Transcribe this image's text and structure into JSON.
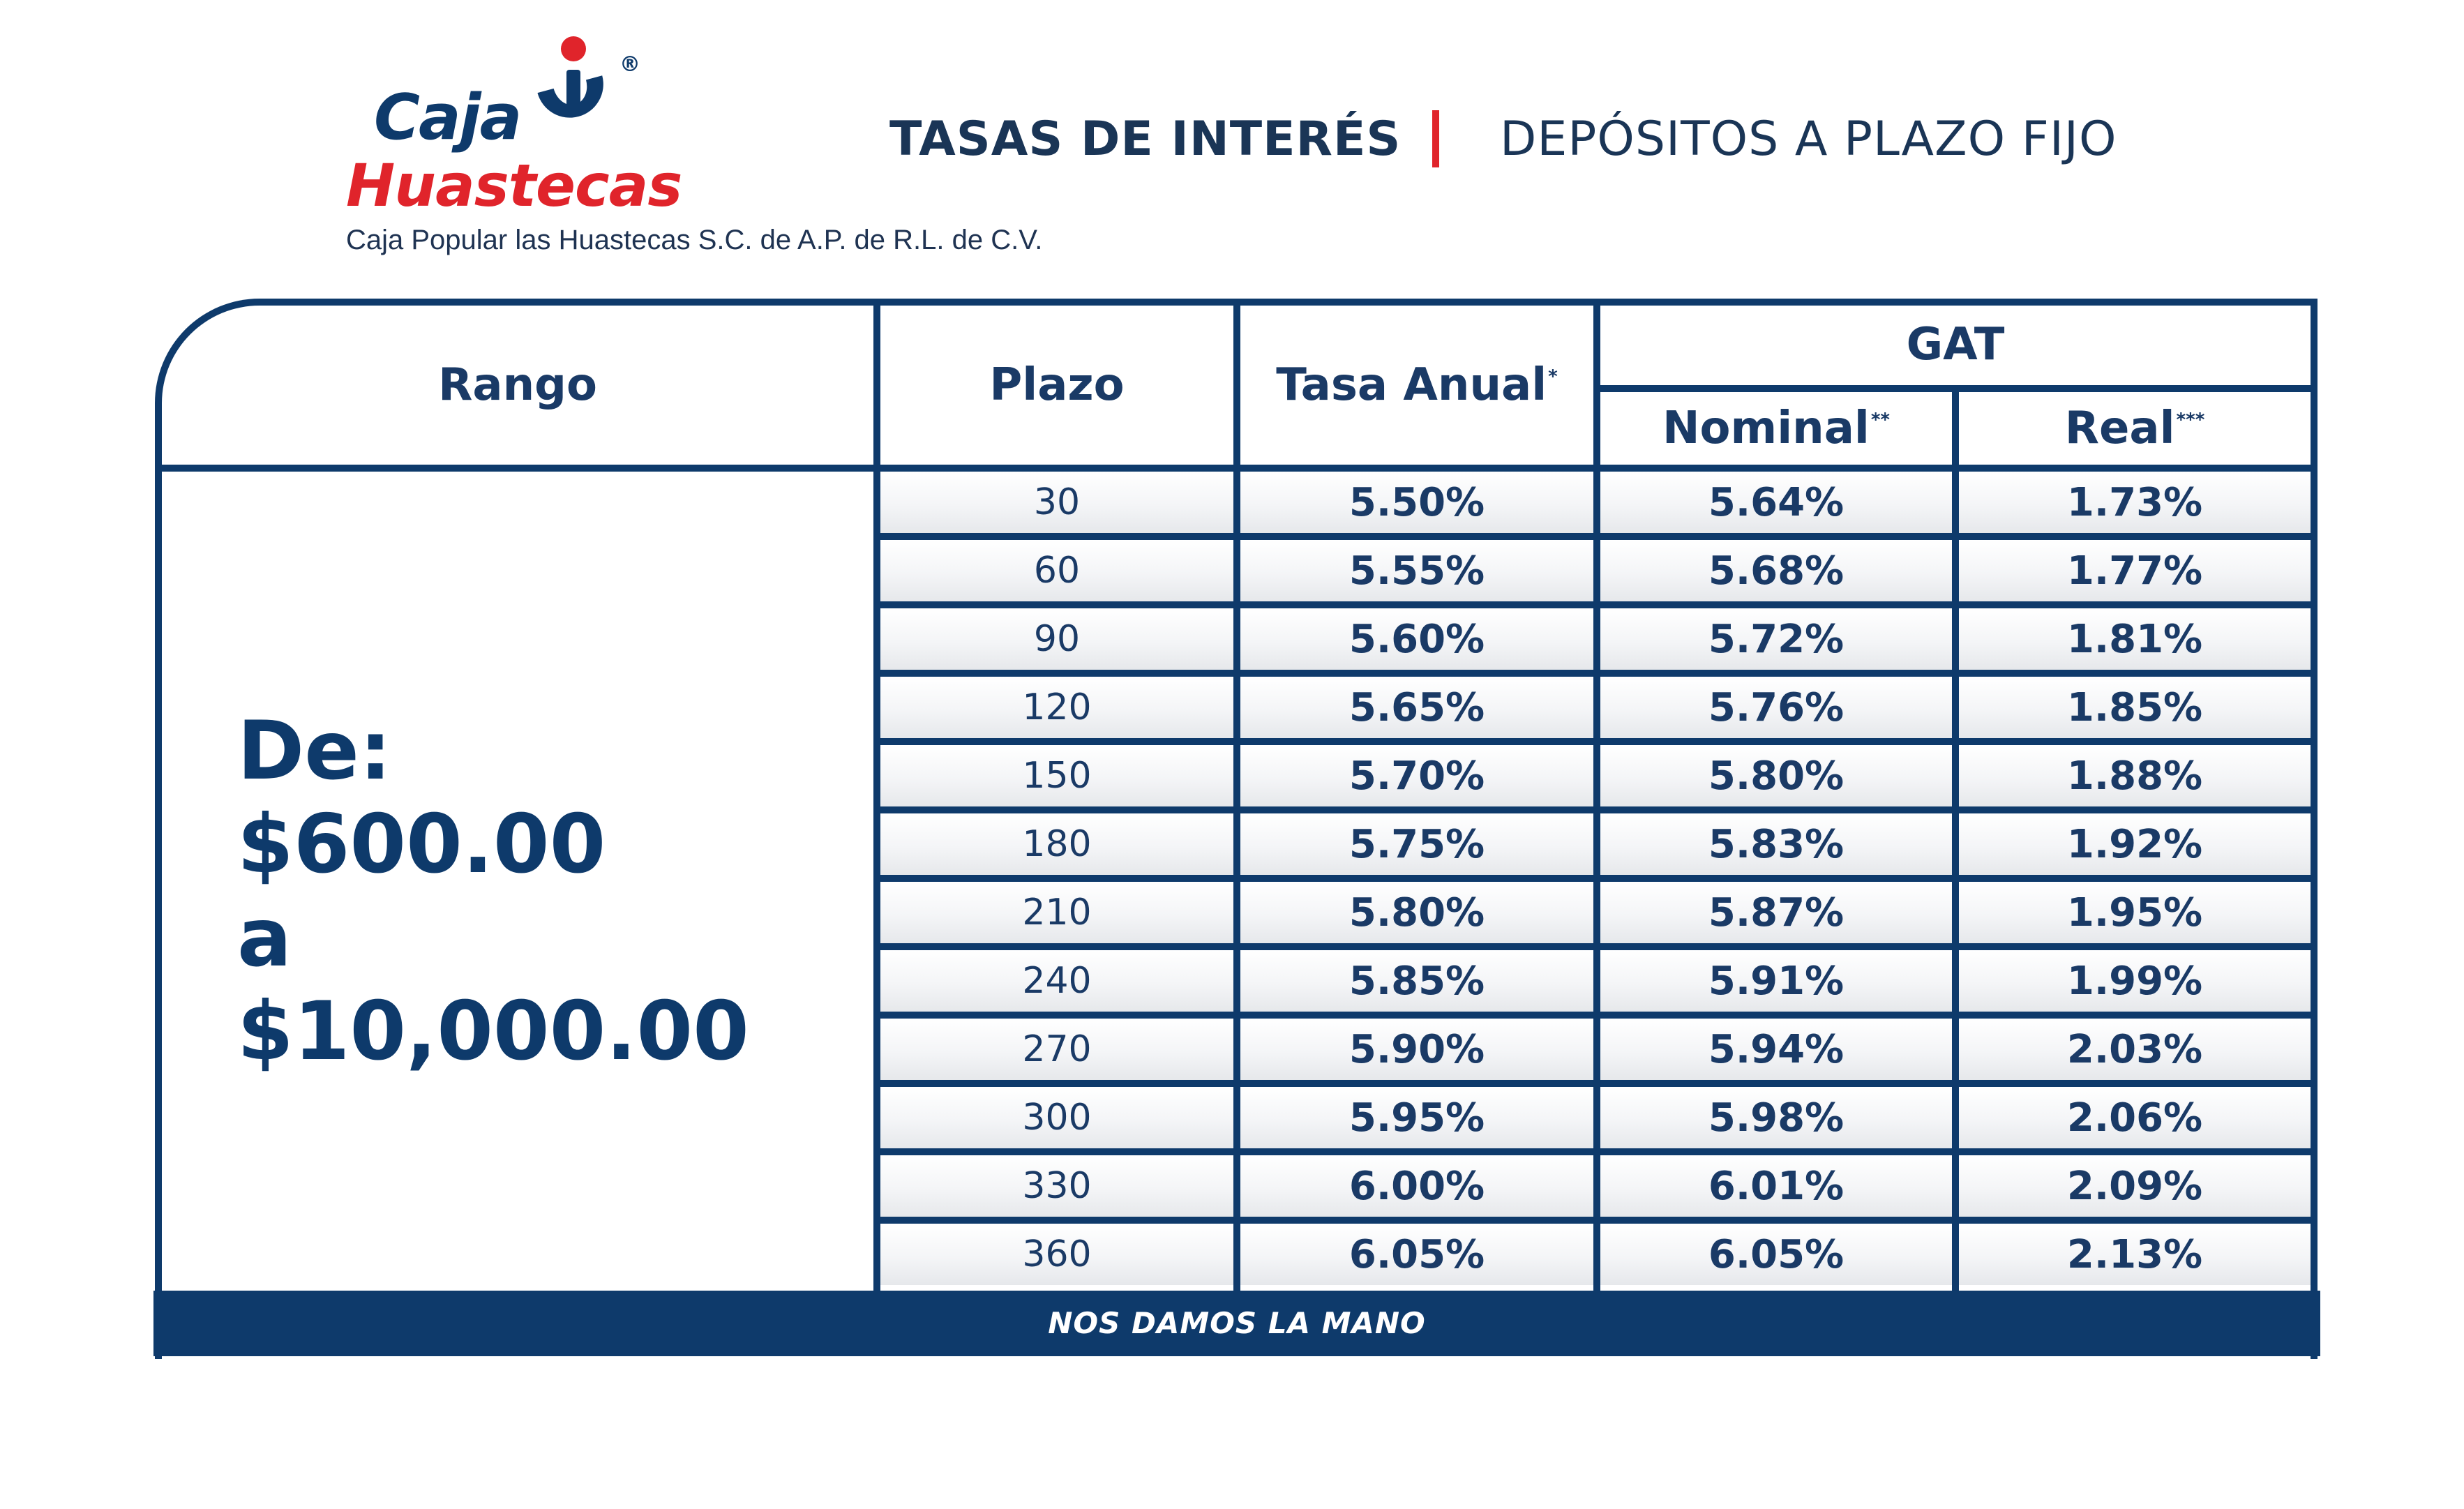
{
  "header": {
    "logo_word1": "Caja",
    "logo_word2": "Huastecas",
    "logo_reg": "®",
    "legal_name": "Caja Popular las Huastecas S.C. de A.P.  de R.L. de C.V.",
    "title_left": "TASAS DE INTERÉS",
    "title_right": "DEPÓSITOS A PLAZO FIJO"
  },
  "table": {
    "headers": {
      "rango": "Rango",
      "plazo": "Plazo",
      "tasa_anual": "Tasa Anual",
      "tasa_anual_mark": "*",
      "gat": "GAT",
      "nominal": "Nominal",
      "nominal_mark": "**",
      "real": "Real",
      "real_mark": "***"
    },
    "rango": {
      "line1": "De:",
      "line2": "$600.00",
      "line3": "a",
      "line4": "$10,000.00"
    },
    "rows": [
      {
        "plazo": "30",
        "tasa": "5.50%",
        "nominal": "5.64%",
        "real": "1.73%"
      },
      {
        "plazo": "60",
        "tasa": "5.55%",
        "nominal": "5.68%",
        "real": "1.77%"
      },
      {
        "plazo": "90",
        "tasa": "5.60%",
        "nominal": "5.72%",
        "real": "1.81%"
      },
      {
        "plazo": "120",
        "tasa": "5.65%",
        "nominal": "5.76%",
        "real": "1.85%"
      },
      {
        "plazo": "150",
        "tasa": "5.70%",
        "nominal": "5.80%",
        "real": "1.88%"
      },
      {
        "plazo": "180",
        "tasa": "5.75%",
        "nominal": "5.83%",
        "real": "1.92%"
      },
      {
        "plazo": "210",
        "tasa": "5.80%",
        "nominal": "5.87%",
        "real": "1.95%"
      },
      {
        "plazo": "240",
        "tasa": "5.85%",
        "nominal": "5.91%",
        "real": "1.99%"
      },
      {
        "plazo": "270",
        "tasa": "5.90%",
        "nominal": "5.94%",
        "real": "2.03%"
      },
      {
        "plazo": "300",
        "tasa": "5.95%",
        "nominal": "5.98%",
        "real": "2.06%"
      },
      {
        "plazo": "330",
        "tasa": "6.00%",
        "nominal": "6.01%",
        "real": "2.09%"
      },
      {
        "plazo": "360",
        "tasa": "6.05%",
        "nominal": "6.05%",
        "real": "2.13%"
      }
    ]
  },
  "footer": {
    "slogan": "NOS DAMOS LA MANO"
  },
  "colors": {
    "navy": "#0e3a6b",
    "brand_red": "#e0242b"
  }
}
